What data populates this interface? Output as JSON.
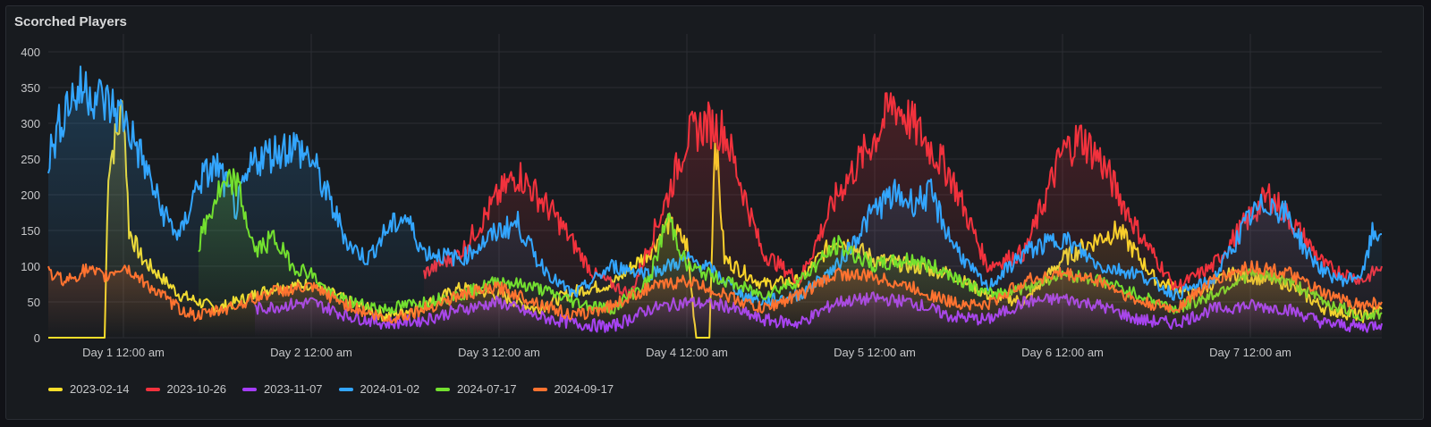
{
  "panel": {
    "title": "Scorched Players"
  },
  "chart_data": {
    "type": "line",
    "title": "Scorched Players",
    "ylim": [
      0,
      400
    ],
    "y_ticks": [
      0,
      50,
      100,
      150,
      200,
      250,
      300,
      350,
      400
    ],
    "x_ticks": [
      "Day 1 12:00 am",
      "Day 2 12:00 am",
      "Day 3 12:00 am",
      "Day 4 12:00 am",
      "Day 5 12:00 am",
      "Day 6 12:00 am",
      "Day 7 12:00 am"
    ],
    "x_unit": "day",
    "xlim": [
      0.6,
      7.7
    ],
    "grid": true,
    "legend_position": "bottom-left",
    "series": [
      {
        "name": "2023-02-14",
        "color": "#fade2a",
        "points": [
          [
            0.6,
            0
          ],
          [
            0.9,
            0
          ],
          [
            0.92,
            240
          ],
          [
            0.97,
            290
          ],
          [
            1.0,
            330
          ],
          [
            1.03,
            150
          ],
          [
            1.1,
            110
          ],
          [
            1.3,
            60
          ],
          [
            1.5,
            40
          ],
          [
            1.8,
            70
          ],
          [
            2.0,
            75
          ],
          [
            2.2,
            50
          ],
          [
            2.4,
            30
          ],
          [
            2.6,
            45
          ],
          [
            2.8,
            70
          ],
          [
            3.0,
            60
          ],
          [
            3.2,
            40
          ],
          [
            3.4,
            65
          ],
          [
            3.6,
            75
          ],
          [
            3.8,
            120
          ],
          [
            3.9,
            160
          ],
          [
            4.0,
            130
          ],
          [
            4.05,
            0
          ],
          [
            4.12,
            0
          ],
          [
            4.15,
            290
          ],
          [
            4.2,
            110
          ],
          [
            4.4,
            75
          ],
          [
            4.6,
            80
          ],
          [
            4.8,
            140
          ],
          [
            5.0,
            110
          ],
          [
            5.2,
            100
          ],
          [
            5.4,
            90
          ],
          [
            5.6,
            60
          ],
          [
            5.8,
            50
          ],
          [
            6.0,
            110
          ],
          [
            6.2,
            140
          ],
          [
            6.3,
            150
          ],
          [
            6.5,
            80
          ],
          [
            6.7,
            60
          ],
          [
            6.9,
            90
          ],
          [
            7.0,
            85
          ],
          [
            7.2,
            75
          ],
          [
            7.4,
            40
          ],
          [
            7.6,
            30
          ],
          [
            7.7,
            40
          ]
        ]
      },
      {
        "name": "2023-10-26",
        "color": "#f2323d",
        "points": [
          [
            2.6,
            90
          ],
          [
            2.8,
            120
          ],
          [
            3.0,
            200
          ],
          [
            3.1,
            230
          ],
          [
            3.3,
            170
          ],
          [
            3.5,
            90
          ],
          [
            3.7,
            60
          ],
          [
            3.9,
            200
          ],
          [
            4.0,
            280
          ],
          [
            4.1,
            300
          ],
          [
            4.2,
            290
          ],
          [
            4.4,
            120
          ],
          [
            4.6,
            80
          ],
          [
            4.8,
            200
          ],
          [
            5.0,
            280
          ],
          [
            5.1,
            330
          ],
          [
            5.2,
            300
          ],
          [
            5.4,
            230
          ],
          [
            5.6,
            100
          ],
          [
            5.8,
            120
          ],
          [
            6.0,
            260
          ],
          [
            6.1,
            280
          ],
          [
            6.2,
            250
          ],
          [
            6.4,
            150
          ],
          [
            6.6,
            70
          ],
          [
            6.8,
            100
          ],
          [
            7.0,
            170
          ],
          [
            7.1,
            200
          ],
          [
            7.2,
            170
          ],
          [
            7.4,
            100
          ],
          [
            7.6,
            80
          ],
          [
            7.7,
            100
          ]
        ]
      },
      {
        "name": "2023-11-07",
        "color": "#a53dfc",
        "points": [
          [
            1.7,
            40
          ],
          [
            2.0,
            50
          ],
          [
            2.2,
            30
          ],
          [
            2.4,
            20
          ],
          [
            2.6,
            25
          ],
          [
            2.8,
            40
          ],
          [
            3.0,
            50
          ],
          [
            3.2,
            30
          ],
          [
            3.4,
            20
          ],
          [
            3.6,
            15
          ],
          [
            3.8,
            40
          ],
          [
            4.0,
            50
          ],
          [
            4.2,
            45
          ],
          [
            4.4,
            25
          ],
          [
            4.6,
            20
          ],
          [
            4.8,
            50
          ],
          [
            5.0,
            55
          ],
          [
            5.2,
            50
          ],
          [
            5.4,
            30
          ],
          [
            5.6,
            25
          ],
          [
            5.8,
            50
          ],
          [
            6.0,
            55
          ],
          [
            6.2,
            45
          ],
          [
            6.4,
            25
          ],
          [
            6.6,
            20
          ],
          [
            6.8,
            40
          ],
          [
            7.0,
            45
          ],
          [
            7.2,
            40
          ],
          [
            7.4,
            20
          ],
          [
            7.6,
            15
          ],
          [
            7.7,
            20
          ]
        ]
      },
      {
        "name": "2024-01-02",
        "color": "#33a6ff",
        "points": [
          [
            0.6,
            250
          ],
          [
            0.7,
            330
          ],
          [
            0.8,
            350
          ],
          [
            0.9,
            330
          ],
          [
            1.0,
            310
          ],
          [
            1.1,
            250
          ],
          [
            1.2,
            180
          ],
          [
            1.3,
            140
          ],
          [
            1.4,
            220
          ],
          [
            1.5,
            240
          ],
          [
            1.6,
            180
          ],
          [
            1.7,
            250
          ],
          [
            1.8,
            260
          ],
          [
            1.9,
            270
          ],
          [
            2.0,
            250
          ],
          [
            2.1,
            190
          ],
          [
            2.2,
            130
          ],
          [
            2.3,
            110
          ],
          [
            2.4,
            150
          ],
          [
            2.5,
            170
          ],
          [
            2.6,
            120
          ],
          [
            2.8,
            110
          ],
          [
            3.0,
            150
          ],
          [
            3.1,
            160
          ],
          [
            3.2,
            110
          ],
          [
            3.3,
            80
          ],
          [
            3.4,
            60
          ],
          [
            3.5,
            80
          ],
          [
            3.6,
            100
          ],
          [
            3.8,
            90
          ],
          [
            4.0,
            110
          ],
          [
            4.1,
            100
          ],
          [
            4.2,
            80
          ],
          [
            4.3,
            60
          ],
          [
            4.4,
            50
          ],
          [
            4.6,
            60
          ],
          [
            4.8,
            100
          ],
          [
            5.0,
            180
          ],
          [
            5.1,
            200
          ],
          [
            5.2,
            190
          ],
          [
            5.3,
            200
          ],
          [
            5.4,
            140
          ],
          [
            5.5,
            100
          ],
          [
            5.6,
            70
          ],
          [
            5.8,
            120
          ],
          [
            6.0,
            140
          ],
          [
            6.1,
            120
          ],
          [
            6.2,
            100
          ],
          [
            6.4,
            90
          ],
          [
            6.6,
            60
          ],
          [
            6.8,
            80
          ],
          [
            7.0,
            170
          ],
          [
            7.1,
            190
          ],
          [
            7.2,
            170
          ],
          [
            7.3,
            120
          ],
          [
            7.4,
            90
          ],
          [
            7.5,
            80
          ],
          [
            7.6,
            90
          ],
          [
            7.65,
            145
          ],
          [
            7.7,
            145
          ]
        ]
      },
      {
        "name": "2024-07-17",
        "color": "#73e02f",
        "points": [
          [
            1.4,
            130
          ],
          [
            1.5,
            200
          ],
          [
            1.6,
            220
          ],
          [
            1.7,
            120
          ],
          [
            1.8,
            140
          ],
          [
            1.9,
            100
          ],
          [
            2.0,
            90
          ],
          [
            2.1,
            60
          ],
          [
            2.2,
            50
          ],
          [
            2.4,
            40
          ],
          [
            2.6,
            50
          ],
          [
            2.8,
            60
          ],
          [
            3.0,
            80
          ],
          [
            3.2,
            70
          ],
          [
            3.4,
            50
          ],
          [
            3.6,
            40
          ],
          [
            3.8,
            80
          ],
          [
            3.9,
            170
          ],
          [
            4.0,
            100
          ],
          [
            4.2,
            80
          ],
          [
            4.4,
            60
          ],
          [
            4.6,
            80
          ],
          [
            4.8,
            130
          ],
          [
            5.0,
            100
          ],
          [
            5.2,
            110
          ],
          [
            5.4,
            90
          ],
          [
            5.6,
            60
          ],
          [
            5.8,
            70
          ],
          [
            6.0,
            90
          ],
          [
            6.2,
            80
          ],
          [
            6.4,
            60
          ],
          [
            6.6,
            40
          ],
          [
            6.8,
            60
          ],
          [
            7.0,
            90
          ],
          [
            7.2,
            80
          ],
          [
            7.4,
            50
          ],
          [
            7.6,
            30
          ],
          [
            7.7,
            35
          ]
        ]
      },
      {
        "name": "2024-09-17",
        "color": "#ff7330",
        "points": [
          [
            0.6,
            90
          ],
          [
            0.7,
            80
          ],
          [
            0.8,
            95
          ],
          [
            0.9,
            85
          ],
          [
            1.0,
            100
          ],
          [
            1.1,
            80
          ],
          [
            1.2,
            60
          ],
          [
            1.3,
            40
          ],
          [
            1.4,
            30
          ],
          [
            1.6,
            45
          ],
          [
            1.8,
            65
          ],
          [
            2.0,
            70
          ],
          [
            2.2,
            45
          ],
          [
            2.4,
            25
          ],
          [
            2.6,
            40
          ],
          [
            2.8,
            60
          ],
          [
            3.0,
            70
          ],
          [
            3.2,
            50
          ],
          [
            3.4,
            30
          ],
          [
            3.6,
            45
          ],
          [
            3.8,
            70
          ],
          [
            4.0,
            80
          ],
          [
            4.2,
            60
          ],
          [
            4.4,
            40
          ],
          [
            4.6,
            60
          ],
          [
            4.8,
            90
          ],
          [
            5.0,
            85
          ],
          [
            5.2,
            70
          ],
          [
            5.4,
            50
          ],
          [
            5.6,
            45
          ],
          [
            5.8,
            80
          ],
          [
            6.0,
            90
          ],
          [
            6.2,
            80
          ],
          [
            6.4,
            50
          ],
          [
            6.6,
            40
          ],
          [
            6.8,
            80
          ],
          [
            7.0,
            100
          ],
          [
            7.2,
            90
          ],
          [
            7.4,
            60
          ],
          [
            7.6,
            45
          ],
          [
            7.7,
            50
          ]
        ]
      }
    ]
  }
}
